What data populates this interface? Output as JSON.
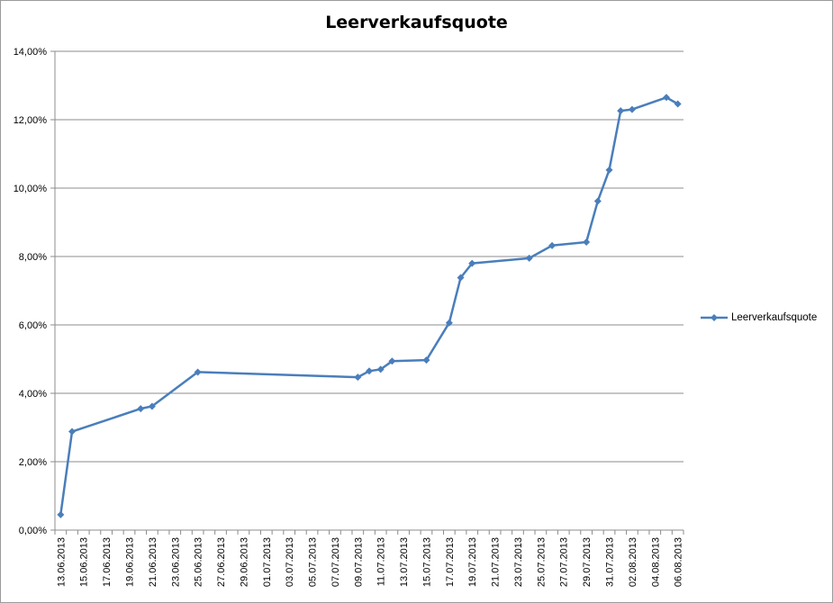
{
  "chart_data": {
    "type": "line",
    "title": "Leerverkaufsquote",
    "xlabel": "",
    "ylabel": "",
    "ylim": [
      0,
      14
    ],
    "yticks": [
      "0,00%",
      "2,00%",
      "4,00%",
      "6,00%",
      "8,00%",
      "10,00%",
      "12,00%",
      "14,00%"
    ],
    "grid": "horizontal",
    "legend": "right",
    "xtick_labels": [
      "13.06.2013",
      "15.06.2013",
      "17.06.2013",
      "19.06.2013",
      "21.06.2013",
      "23.06.2013",
      "25.06.2013",
      "27.06.2013",
      "29.06.2013",
      "01.07.2013",
      "03.07.2013",
      "05.07.2013",
      "07.07.2013",
      "09.07.2013",
      "11.07.2013",
      "13.07.2013",
      "15.07.2013",
      "17.07.2013",
      "19.07.2013",
      "21.07.2013",
      "23.07.2013",
      "25.07.2013",
      "27.07.2013",
      "29.07.2013",
      "31.07.2013",
      "02.08.2013",
      "04.08.2013",
      "06.08.2013"
    ],
    "series": [
      {
        "name": "Leerverkaufsquote",
        "color": "#4a7ebb",
        "marker": "diamond",
        "x": [
          "13.06.2013",
          "14.06.2013",
          "20.06.2013",
          "21.06.2013",
          "25.06.2013",
          "09.07.2013",
          "10.07.2013",
          "11.07.2013",
          "12.07.2013",
          "15.07.2013",
          "17.07.2013",
          "18.07.2013",
          "19.07.2013",
          "24.07.2013",
          "26.07.2013",
          "29.07.2013",
          "30.07.2013",
          "31.07.2013",
          "01.08.2013",
          "02.08.2013",
          "05.08.2013",
          "06.08.2013"
        ],
        "y": [
          0.45,
          2.88,
          3.55,
          3.62,
          4.62,
          4.47,
          4.65,
          4.7,
          4.94,
          4.97,
          6.06,
          7.38,
          7.8,
          7.95,
          8.32,
          8.42,
          9.62,
          10.53,
          12.26,
          12.3,
          12.65,
          12.46
        ]
      }
    ]
  }
}
